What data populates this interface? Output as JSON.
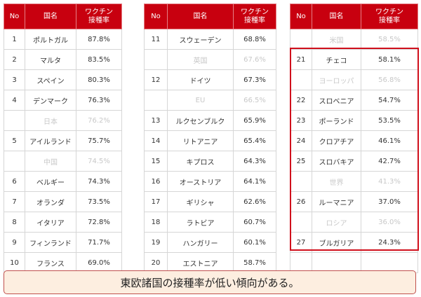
{
  "headers": {
    "no": "No",
    "country": "国名",
    "rate_line1": "ワクチン",
    "rate_line2": "接種率"
  },
  "table1": [
    {
      "no": "1",
      "country": "ポルトガル",
      "rate": "87.8%",
      "ref": false
    },
    {
      "no": "2",
      "country": "マルタ",
      "rate": "83.5%",
      "ref": false
    },
    {
      "no": "3",
      "country": "スペイン",
      "rate": "80.3%",
      "ref": false
    },
    {
      "no": "4",
      "country": "デンマーク",
      "rate": "76.3%",
      "ref": false
    },
    {
      "no": "",
      "country": "日本",
      "rate": "76.2%",
      "ref": true
    },
    {
      "no": "5",
      "country": "アイルランド",
      "rate": "75.7%",
      "ref": false
    },
    {
      "no": "",
      "country": "中国",
      "rate": "74.5%",
      "ref": true
    },
    {
      "no": "6",
      "country": "ベルギー",
      "rate": "74.3%",
      "ref": false
    },
    {
      "no": "7",
      "country": "オランダ",
      "rate": "73.5%",
      "ref": false
    },
    {
      "no": "8",
      "country": "イタリア",
      "rate": "72.8%",
      "ref": false
    },
    {
      "no": "9",
      "country": "フィンランド",
      "rate": "71.7%",
      "ref": false
    },
    {
      "no": "10",
      "country": "フランス",
      "rate": "69.0%",
      "ref": false
    }
  ],
  "table2": [
    {
      "no": "11",
      "country": "スウェーデン",
      "rate": "68.8%",
      "ref": false
    },
    {
      "no": "",
      "country": "英国",
      "rate": "67.6%",
      "ref": true
    },
    {
      "no": "12",
      "country": "ドイツ",
      "rate": "67.3%",
      "ref": false
    },
    {
      "no": "",
      "country": "EU",
      "rate": "66.5%",
      "ref": true
    },
    {
      "no": "13",
      "country": "ルクセンブルク",
      "rate": "65.9%",
      "ref": false
    },
    {
      "no": "14",
      "country": "リトアニア",
      "rate": "65.4%",
      "ref": false
    },
    {
      "no": "15",
      "country": "キプロス",
      "rate": "64.3%",
      "ref": false
    },
    {
      "no": "16",
      "country": "オーストリア",
      "rate": "64.1%",
      "ref": false
    },
    {
      "no": "17",
      "country": "ギリシャ",
      "rate": "62.6%",
      "ref": false
    },
    {
      "no": "18",
      "country": "ラトビア",
      "rate": "60.7%",
      "ref": false
    },
    {
      "no": "19",
      "country": "ハンガリー",
      "rate": "60.1%",
      "ref": false
    },
    {
      "no": "20",
      "country": "エストニア",
      "rate": "58.7%",
      "ref": false
    }
  ],
  "table3": [
    {
      "no": "",
      "country": "米国",
      "rate": "58.5%",
      "ref": true
    },
    {
      "no": "21",
      "country": "チェコ",
      "rate": "58.1%",
      "ref": false
    },
    {
      "no": "",
      "country": "ヨーロッパ",
      "rate": "56.8%",
      "ref": true
    },
    {
      "no": "22",
      "country": "スロベニア",
      "rate": "54.7%",
      "ref": false
    },
    {
      "no": "23",
      "country": "ポーランド",
      "rate": "53.5%",
      "ref": false
    },
    {
      "no": "24",
      "country": "クロアチア",
      "rate": "46.1%",
      "ref": false
    },
    {
      "no": "25",
      "country": "スロバキア",
      "rate": "42.7%",
      "ref": false
    },
    {
      "no": "",
      "country": "世界",
      "rate": "41.3%",
      "ref": true
    },
    {
      "no": "26",
      "country": "ルーマニア",
      "rate": "37.0%",
      "ref": false
    },
    {
      "no": "",
      "country": "ロシア",
      "rate": "36.0%",
      "ref": true
    },
    {
      "no": "27",
      "country": "ブルガリア",
      "rate": "24.3%",
      "ref": false
    },
    {
      "no": "",
      "country": "",
      "rate": "",
      "ref": false
    }
  ],
  "colors": {
    "header_bg": "#c8000f",
    "highlight_border": "#d0101c",
    "caption_bg": "#fdeee0",
    "caption_border": "#c0504d",
    "reference_text": "#c8c8c8"
  },
  "caption": "東欧諸国の接種率が低い傾向がある。"
}
